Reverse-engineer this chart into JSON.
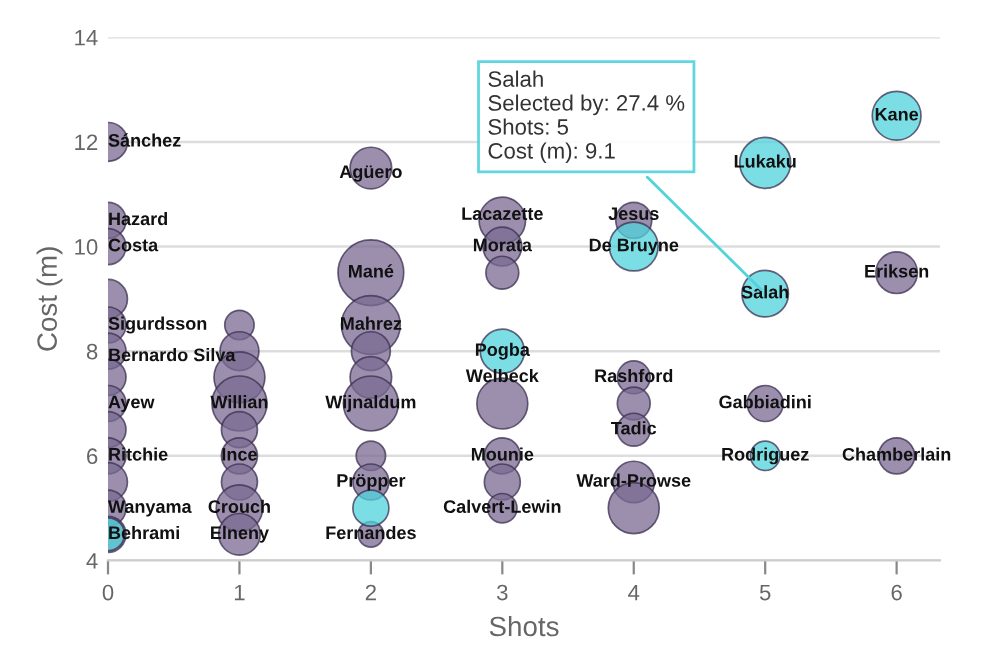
{
  "chart_data": {
    "type": "bubble",
    "xlabel": "Shots",
    "ylabel": "Cost (m)",
    "xlim": [
      0,
      6.33
    ],
    "xticks": [
      0,
      1,
      2,
      3,
      4,
      5,
      6
    ],
    "ylim": [
      4,
      14
    ],
    "yticks": [
      4,
      6,
      8,
      10,
      12,
      14
    ],
    "grid": "y",
    "series": [
      {
        "color": "#7a6a92",
        "x": [
          0,
          0,
          0,
          0,
          0,
          0,
          0,
          0,
          0,
          0,
          0,
          0,
          0,
          1,
          1,
          1,
          1,
          1,
          1,
          1,
          1,
          1,
          2,
          2,
          2,
          2,
          2,
          2,
          2,
          2,
          2,
          3,
          3,
          3,
          3,
          3,
          3,
          3,
          4,
          4,
          4,
          4,
          4,
          4,
          5,
          6,
          6
        ],
        "values": [
          12,
          10.5,
          10,
          9,
          8.5,
          8,
          7.5,
          7,
          6.5,
          6,
          5.5,
          5,
          4.5,
          8.5,
          8,
          7.5,
          7,
          6.5,
          6,
          5.5,
          5,
          4.5,
          11.5,
          9.5,
          8.5,
          8,
          7.5,
          7,
          6,
          5.5,
          4.5,
          10.5,
          10,
          9.5,
          7,
          6,
          5.5,
          5,
          10.5,
          7.5,
          7,
          6.5,
          5.5,
          5,
          7,
          9.5,
          6
        ],
        "sizes": [
          0.35,
          0.3,
          0.3,
          0.35,
          0.3,
          0.3,
          0.3,
          0.3,
          0.3,
          0.3,
          0.35,
          0.3,
          0.3,
          0.2,
          0.35,
          0.6,
          0.7,
          0.3,
          0.3,
          0.3,
          0.5,
          0.4,
          0.4,
          1,
          0.8,
          0.35,
          0.4,
          0.7,
          0.2,
          0.3,
          0.15,
          0.5,
          0.35,
          0.25,
          0.6,
          0.3,
          0.3,
          0.2,
          0.3,
          0.25,
          0.25,
          0.25,
          0.4,
          0.6,
          0.3,
          0.4,
          0.3
        ]
      },
      {
        "color": "#4fd3dc",
        "x": [
          0,
          2,
          3,
          4,
          5,
          5,
          5,
          6
        ],
        "values": [
          4.5,
          5,
          8,
          10,
          11.6,
          9.1,
          6,
          12.5
        ],
        "sizes": [
          0.25,
          0.3,
          0.45,
          0.55,
          0.6,
          0.5,
          0.2,
          0.55
        ]
      }
    ],
    "annotations": [
      {
        "text": "Sánchez",
        "x": 0,
        "y": 12
      },
      {
        "text": "Hazard",
        "x": 0,
        "y": 10.5
      },
      {
        "text": "Costa",
        "x": 0,
        "y": 10
      },
      {
        "text": "Sigurdsson",
        "x": 0,
        "y": 8.5
      },
      {
        "text": "Bernardo Silva",
        "x": 0,
        "y": 7.9
      },
      {
        "text": "Ayew",
        "x": 0,
        "y": 7
      },
      {
        "text": "Ritchie",
        "x": 0,
        "y": 6
      },
      {
        "text": "Wanyama",
        "x": 0,
        "y": 5
      },
      {
        "text": "Behrami",
        "x": 0,
        "y": 4.5
      },
      {
        "text": "Willian",
        "x": 1,
        "y": 7
      },
      {
        "text": "Ince",
        "x": 1,
        "y": 6
      },
      {
        "text": "Crouch",
        "x": 1,
        "y": 5
      },
      {
        "text": "Elneny",
        "x": 1,
        "y": 4.5
      },
      {
        "text": "Agüero",
        "x": 2,
        "y": 11.4
      },
      {
        "text": "Mané",
        "x": 2,
        "y": 9.5
      },
      {
        "text": "Mahrez",
        "x": 2,
        "y": 8.5
      },
      {
        "text": "Wijnaldum",
        "x": 2,
        "y": 7
      },
      {
        "text": "Pröpper",
        "x": 2,
        "y": 5.5
      },
      {
        "text": "Fernandes",
        "x": 2,
        "y": 4.5
      },
      {
        "text": "Lacazette",
        "x": 3,
        "y": 10.6
      },
      {
        "text": "Morata",
        "x": 3,
        "y": 10
      },
      {
        "text": "Pogba",
        "x": 3,
        "y": 8
      },
      {
        "text": "Welbeck",
        "x": 3,
        "y": 7.5
      },
      {
        "text": "Mounie",
        "x": 3,
        "y": 6
      },
      {
        "text": "Calvert-Lewin",
        "x": 3,
        "y": 5
      },
      {
        "text": "Jesus",
        "x": 4,
        "y": 10.6
      },
      {
        "text": "De Bruyne",
        "x": 4,
        "y": 10
      },
      {
        "text": "Rashford",
        "x": 4,
        "y": 7.5
      },
      {
        "text": "Tadic",
        "x": 4,
        "y": 6.5
      },
      {
        "text": "Ward-Prowse",
        "x": 4,
        "y": 5.5
      },
      {
        "text": "Lukaku",
        "x": 5,
        "y": 11.6
      },
      {
        "text": "Salah",
        "x": 5,
        "y": 9.1
      },
      {
        "text": "Gabbiadini",
        "x": 5,
        "y": 7
      },
      {
        "text": "Rodriguez",
        "x": 5,
        "y": 6
      },
      {
        "text": "Kane",
        "x": 6,
        "y": 12.5
      },
      {
        "text": "Eriksen",
        "x": 6,
        "y": 9.5
      },
      {
        "text": "Chamberlain",
        "x": 6,
        "y": 6
      },
      {
        "text": "Salah\nSelected by: 27.4 %\nShots: 5\nCost (m): 9.1",
        "x": 5,
        "y": 9.1
      }
    ]
  }
}
